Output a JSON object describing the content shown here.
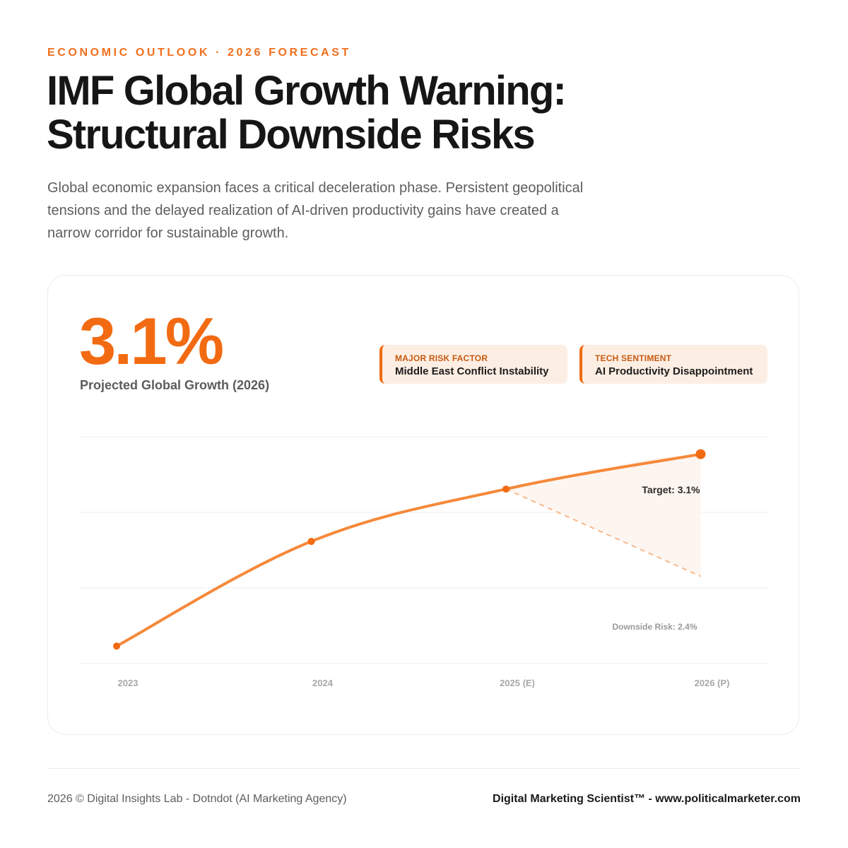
{
  "header": {
    "eyebrow": "ECONOMIC OUTLOOK · 2026 FORECAST",
    "title_line1": "IMF Global Growth Warning:",
    "title_line2": "Structural Downside Risks",
    "subtitle": "Global economic expansion faces a critical deceleration phase. Persistent geopolitical tensions and the delayed realization of AI-driven productivity gains have created a narrow corridor for sustainable growth."
  },
  "kpi": {
    "value": "3.1%",
    "caption": "Projected Global Growth (2026)"
  },
  "risk_cards": [
    {
      "label": "MAJOR RISK FACTOR",
      "value": "Middle East Conflict Instability"
    },
    {
      "label": "TECH SENTIMENT",
      "value": "AI Productivity Disappointment"
    }
  ],
  "colors": {
    "accent": "#f26b12",
    "line": "#f5893a",
    "downside": "#f7b98c",
    "grid": "#efefef",
    "tick": "#a8a8a8"
  },
  "chart_data": {
    "type": "line",
    "categories": [
      "2023",
      "2024",
      "2025 (E)",
      "2026 (P)"
    ],
    "series": [
      {
        "values": [
          2.0,
          2.6,
          2.9,
          3.1
        ]
      },
      {
        "values": [
          null,
          null,
          2.9,
          2.4
        ]
      }
    ],
    "ylim": [
      1.9,
      3.2
    ],
    "grid": true,
    "annotations": [
      {
        "text": "Target: 3.1%",
        "series": 0,
        "index": 3
      },
      {
        "text": "Downside Risk: 2.4%",
        "series": 1,
        "index": 3
      }
    ]
  },
  "footer": {
    "left": "2026 © Digital Insights Lab - Dotndot (AI Marketing Agency)",
    "right": "Digital Marketing Scientist™ - www.politicalmarketer.com"
  }
}
